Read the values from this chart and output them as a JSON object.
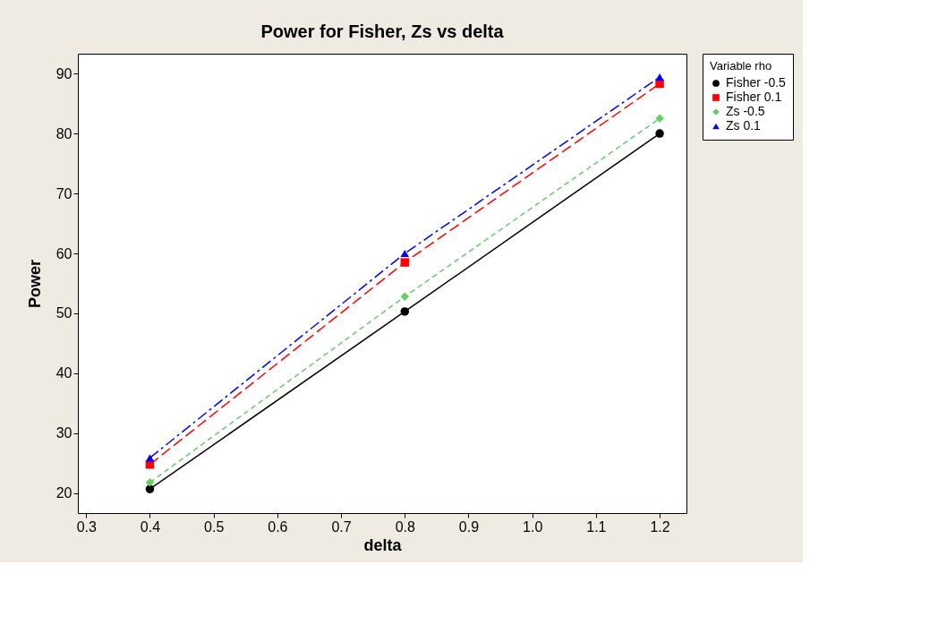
{
  "chart_data": {
    "type": "line",
    "title": "Power for Fisher, Zs vs delta",
    "xlabel": "delta",
    "ylabel": "Power",
    "legend_title": "Variable rho",
    "legend": "right",
    "x": [
      0.4,
      0.8,
      1.2
    ],
    "xlim": [
      0.287,
      1.242
    ],
    "xticks": [
      {
        "value": 0.3,
        "label": "0.3"
      },
      {
        "value": 0.4,
        "label": "0.4"
      },
      {
        "value": 0.5,
        "label": "0.5"
      },
      {
        "value": 0.6,
        "label": "0.6"
      },
      {
        "value": 0.7,
        "label": "0.7"
      },
      {
        "value": 0.8,
        "label": "0.8"
      },
      {
        "value": 0.9,
        "label": "0.9"
      },
      {
        "value": 1.0,
        "label": "1.0"
      },
      {
        "value": 1.1,
        "label": "1.1"
      },
      {
        "value": 1.2,
        "label": "1.2"
      }
    ],
    "ylim": [
      16.7,
      93.3
    ],
    "yticks": [
      20,
      30,
      40,
      50,
      60,
      70,
      80,
      90
    ],
    "grid": false,
    "series": [
      {
        "name": "Fisher -0.5",
        "color": "#000000",
        "values": [
          20.7,
          50.3,
          80.0
        ],
        "marker": "circle",
        "line_style": "solid"
      },
      {
        "name": "Fisher 0.1",
        "color": "#ff0000",
        "values": [
          24.8,
          58.5,
          88.3
        ],
        "marker": "square",
        "line_style": "dashed"
      },
      {
        "name": "Zs -0.5",
        "color": "#66cc66",
        "values": [
          21.8,
          52.8,
          82.5
        ],
        "marker": "diamond",
        "line_style": "dotted"
      },
      {
        "name": "Zs 0.1",
        "color": "#0000ff",
        "values": [
          25.9,
          60.0,
          89.4
        ],
        "marker": "triangle",
        "line_style": "dashdot"
      }
    ]
  }
}
